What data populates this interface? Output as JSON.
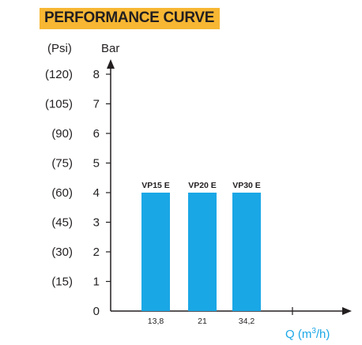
{
  "chart_data": {
    "type": "bar",
    "title": "PERFORMANCE CURVE",
    "categories": [
      "13,8",
      "21",
      "34,2"
    ],
    "bar_labels": [
      "VP15 E",
      "VP20 E",
      "VP30 E"
    ],
    "values": [
      4,
      4,
      4
    ],
    "ylabel": "Bar",
    "ylabel_secondary": "(Psi)",
    "xlabel_prefix": "Q (m",
    "xlabel_sup": "3",
    "xlabel_suffix": "/h)",
    "ylim": [
      0,
      8
    ],
    "yticks": [
      "0",
      "1",
      "2",
      "3",
      "4",
      "5",
      "6",
      "7",
      "8"
    ],
    "yticks_psi": [
      "(15)",
      "(30)",
      "(45)",
      "(60)",
      "(75)",
      "(90)",
      "(105)",
      "(120)"
    ],
    "bar_color": "#1aa7e6",
    "axis_color": "#231f20",
    "xlabel_color": "#1aa7e6",
    "title_band_color": "#f7b733",
    "grid": false
  }
}
